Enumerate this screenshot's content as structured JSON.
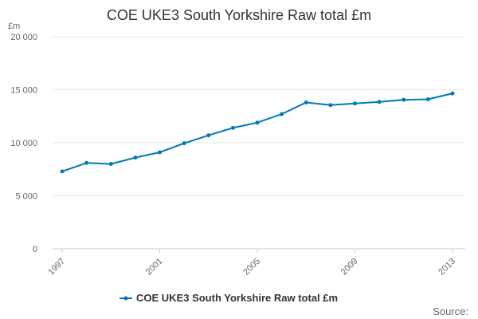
{
  "chart_data": {
    "type": "line",
    "title": "COE UKE3 South Yorkshire Raw total £m",
    "ylabel": "£m",
    "xlabel": "",
    "x": [
      1997,
      1998,
      1999,
      2000,
      2001,
      2002,
      2003,
      2004,
      2005,
      2006,
      2007,
      2008,
      2009,
      2010,
      2011,
      2012,
      2013
    ],
    "x_tick_labels": [
      "1997",
      "2001",
      "2005",
      "2009",
      "2013"
    ],
    "x_tick_values": [
      1997,
      2001,
      2005,
      2009,
      2013
    ],
    "y_tick_labels": [
      "0",
      "5 000",
      "10 000",
      "15 000",
      "20 000"
    ],
    "y_tick_values": [
      0,
      5000,
      10000,
      15000,
      20000
    ],
    "ylim": [
      0,
      20000
    ],
    "grid": true,
    "legend_position": "bottom",
    "series": [
      {
        "name": "COE UKE3 South Yorkshire Raw total £m",
        "color": "#0079b7",
        "values": [
          7300,
          8100,
          8000,
          8600,
          9100,
          9950,
          10700,
          11400,
          11900,
          12700,
          13800,
          13550,
          13700,
          13850,
          14050,
          14100,
          14650
        ]
      }
    ]
  },
  "source_label": "Source:"
}
